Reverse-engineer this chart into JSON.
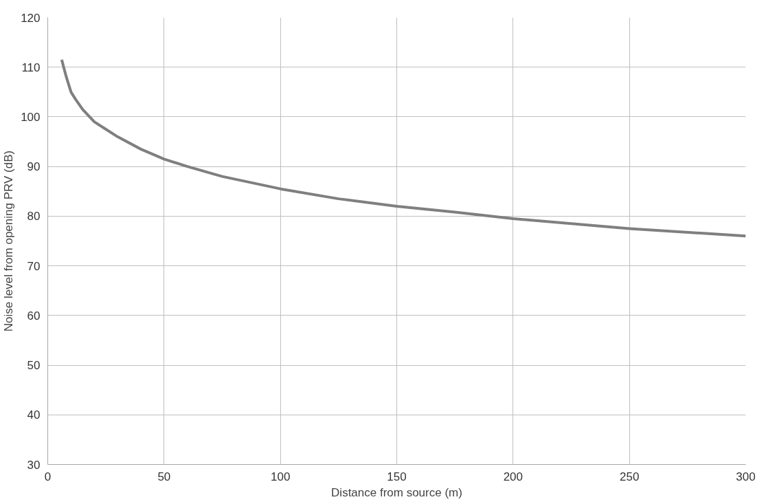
{
  "chart_data": {
    "type": "line",
    "xlabel": "Distance from source (m)",
    "ylabel": "Noise level from opening PRV (dB)",
    "x": [
      6,
      8,
      10,
      12,
      15,
      20,
      25,
      30,
      40,
      50,
      60,
      75,
      100,
      125,
      150,
      175,
      200,
      250,
      300
    ],
    "series": [
      {
        "color": "#7f7f7f",
        "values": [
          111.5,
          108,
          105,
          103.5,
          101.5,
          99,
          97.5,
          96,
          93.5,
          91.5,
          90,
          88,
          85.5,
          83.5,
          82,
          80.8,
          79.5,
          77.5,
          76
        ]
      }
    ],
    "xlim": [
      0,
      300
    ],
    "xticks": [
      0,
      50,
      100,
      150,
      200,
      250,
      300
    ],
    "ylim": [
      30,
      120
    ],
    "yticks": [
      30,
      40,
      50,
      60,
      70,
      80,
      90,
      100,
      110,
      120
    ],
    "grid": true,
    "marker": "none",
    "line_style": "solid"
  }
}
